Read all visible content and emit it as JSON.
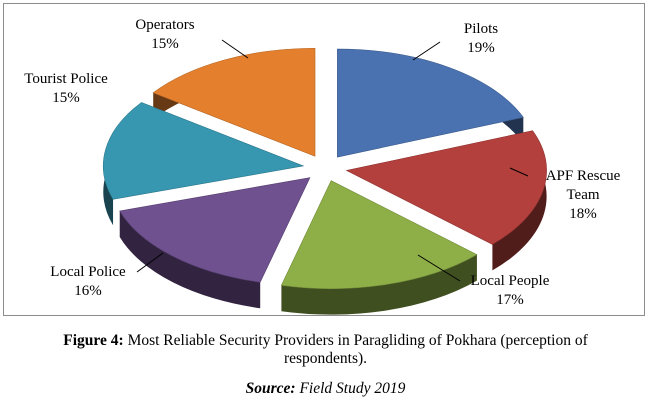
{
  "chart_data": {
    "type": "pie",
    "slices": [
      {
        "label": "Pilots",
        "percent_label": "19%",
        "value": 19,
        "color": "#4a72b0"
      },
      {
        "label": "APF Rescue Team",
        "percent_label": "18%",
        "value": 18,
        "color": "#b3403d"
      },
      {
        "label": "Local People",
        "percent_label": "17%",
        "value": 17,
        "color": "#8eaf48"
      },
      {
        "label": "Local Police",
        "percent_label": "16%",
        "value": 16,
        "color": "#6e518e"
      },
      {
        "label": "Tourist Police",
        "percent_label": "15%",
        "value": 15,
        "color": "#3797b0"
      },
      {
        "label": "Operators",
        "percent_label": "15%",
        "value": 15,
        "color": "#e47f2d"
      }
    ],
    "labels": {
      "pilots": {
        "line1": "Pilots",
        "line2": "19%"
      },
      "apf": {
        "line1": "APF Rescue",
        "line2": "Team",
        "line3": "18%"
      },
      "localpeople": {
        "line1": "Local People",
        "line2": "17%"
      },
      "localpolice": {
        "line1": "Local Police",
        "line2": "16%"
      },
      "tourist": {
        "line1": "Tourist Police",
        "line2": "15%"
      },
      "operators": {
        "line1": "Operators",
        "line2": "15%"
      }
    }
  },
  "caption": {
    "figure_label": "Figure 4:",
    "line1_text": "Most Reliable Security Providers in Paragliding of Pokhara (perception of",
    "line2_text": "respondents).",
    "source_label": "Source:",
    "source_text": "Field Study 2019"
  }
}
